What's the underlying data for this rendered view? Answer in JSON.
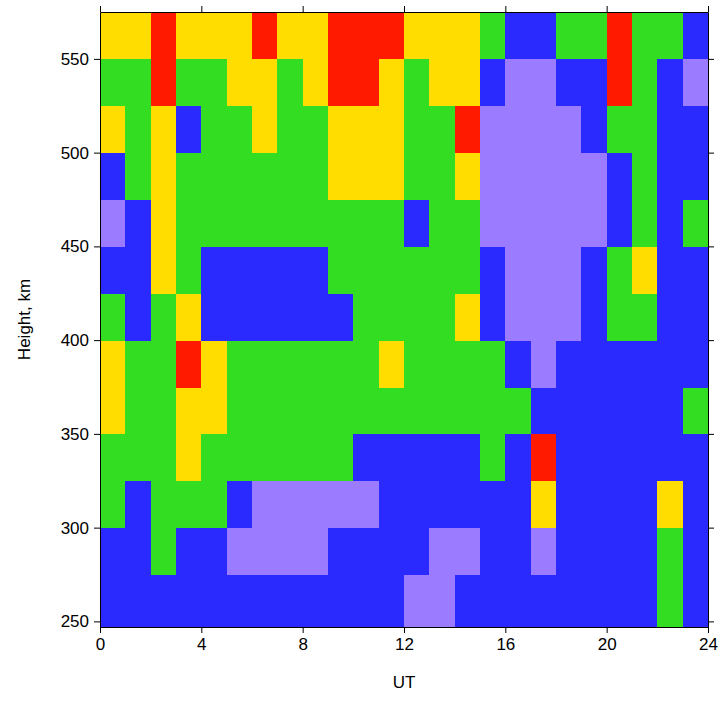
{
  "chart_data": {
    "type": "heatmap",
    "xlabel": "UT",
    "ylabel": "Height, km",
    "xlim": [
      0,
      24
    ],
    "ylim": [
      247,
      575
    ],
    "xticks": [
      0,
      4,
      8,
      12,
      16,
      20,
      24
    ],
    "yticks": [
      250,
      300,
      350,
      400,
      450,
      500,
      550
    ],
    "x_bins": [
      0,
      1,
      2,
      3,
      4,
      5,
      6,
      7,
      8,
      9,
      10,
      11,
      12,
      13,
      14,
      15,
      16,
      17,
      18,
      19,
      20,
      21,
      22,
      23,
      24
    ],
    "y_bins": [
      247,
      275,
      300,
      325,
      350,
      375,
      400,
      425,
      450,
      475,
      500,
      525,
      550,
      575
    ],
    "zlim": [
      0,
      4
    ],
    "z": [
      [
        1,
        1,
        2,
        2,
        3,
        3,
        2,
        1,
        0,
        1,
        3,
        2,
        3
      ],
      [
        1,
        1,
        1,
        2,
        2,
        2,
        1,
        1,
        1,
        2,
        2,
        2,
        3
      ],
      [
        1,
        2,
        2,
        2,
        2,
        2,
        2,
        3,
        3,
        3,
        3,
        4,
        4
      ],
      [
        1,
        1,
        2,
        3,
        3,
        4,
        3,
        2,
        2,
        2,
        1,
        2,
        3
      ],
      [
        1,
        1,
        2,
        2,
        3,
        3,
        1,
        1,
        2,
        2,
        2,
        2,
        3
      ],
      [
        1,
        0,
        1,
        2,
        2,
        2,
        1,
        1,
        2,
        2,
        2,
        3,
        3
      ],
      [
        1,
        0,
        0,
        2,
        2,
        2,
        1,
        1,
        2,
        2,
        3,
        3,
        4
      ],
      [
        1,
        0,
        0,
        2,
        2,
        2,
        1,
        1,
        2,
        2,
        2,
        2,
        3
      ],
      [
        1,
        0,
        0,
        2,
        2,
        2,
        1,
        1,
        2,
        2,
        2,
        3,
        3
      ],
      [
        1,
        1,
        0,
        2,
        2,
        2,
        1,
        2,
        2,
        3,
        3,
        4,
        4
      ],
      [
        1,
        1,
        0,
        1,
        2,
        2,
        2,
        2,
        2,
        3,
        3,
        4,
        4
      ],
      [
        1,
        1,
        1,
        1,
        2,
        3,
        2,
        2,
        2,
        3,
        3,
        3,
        4
      ],
      [
        0,
        1,
        1,
        1,
        2,
        2,
        2,
        2,
        1,
        2,
        2,
        2,
        3
      ],
      [
        0,
        0,
        1,
        1,
        2,
        2,
        2,
        2,
        2,
        2,
        2,
        3,
        3
      ],
      [
        1,
        0,
        1,
        1,
        2,
        2,
        3,
        2,
        2,
        3,
        4,
        3,
        3
      ],
      [
        1,
        1,
        1,
        2,
        2,
        2,
        1,
        1,
        0,
        0,
        0,
        1,
        2
      ],
      [
        1,
        1,
        1,
        1,
        2,
        1,
        0,
        0,
        0,
        0,
        0,
        0,
        1
      ],
      [
        1,
        0,
        3,
        4,
        1,
        0,
        0,
        0,
        0,
        0,
        0,
        0,
        1
      ],
      [
        1,
        1,
        1,
        1,
        1,
        1,
        0,
        0,
        0,
        0,
        0,
        1,
        2
      ],
      [
        1,
        1,
        1,
        1,
        1,
        1,
        1,
        1,
        0,
        0,
        1,
        1,
        2
      ],
      [
        1,
        1,
        1,
        1,
        1,
        1,
        2,
        2,
        1,
        1,
        2,
        4,
        4
      ],
      [
        1,
        1,
        1,
        1,
        1,
        1,
        2,
        3,
        2,
        2,
        2,
        2,
        2
      ],
      [
        2,
        2,
        3,
        1,
        1,
        1,
        1,
        1,
        1,
        1,
        1,
        1,
        2
      ],
      [
        1,
        1,
        1,
        1,
        2,
        1,
        1,
        1,
        2,
        1,
        1,
        0,
        1
      ]
    ]
  }
}
